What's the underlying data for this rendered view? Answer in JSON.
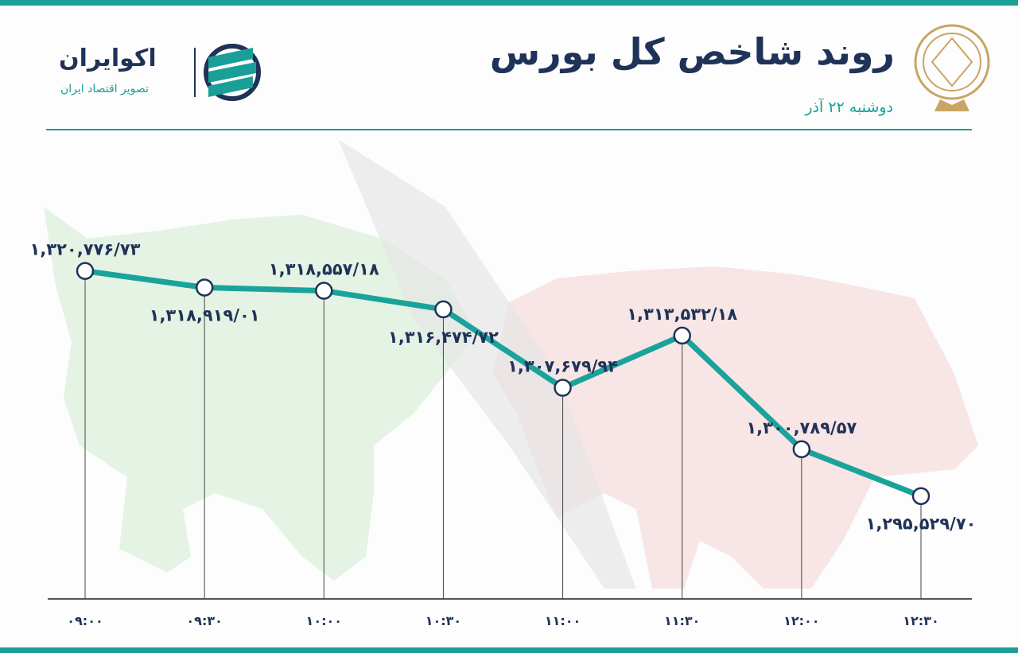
{
  "brand": {
    "name": "اکوایران",
    "tagline": "تصویر اقتصاد ایران"
  },
  "chart_data": {
    "type": "line",
    "title": "روند شاخص کل بورس",
    "subtitle": "دوشنبه ۲۲ آذر",
    "categories": [
      "۰۹:۰۰",
      "۰۹:۳۰",
      "۱۰:۰۰",
      "۱۰:۳۰",
      "۱۱:۰۰",
      "۱۱:۳۰",
      "۱۲:۰۰",
      "۱۲:۳۰"
    ],
    "values": [
      1320776.73,
      1318919.01,
      1318557.18,
      1316474.72,
      1307679.94,
      1313532.18,
      1300789.57,
      1295529.7
    ],
    "value_labels": [
      "۱,۳۲۰,۷۷۶/۷۳",
      "۱,۳۱۸,۹۱۹/۰۱",
      "۱,۳۱۸,۵۵۷/۱۸",
      "۱,۳۱۶,۴۷۴/۷۲",
      "۱,۳۰۷,۶۷۹/۹۴",
      "۱,۳۱۳,۵۳۲/۱۸",
      "۱,۳۰۰,۷۸۹/۵۷",
      "۱,۲۹۵,۵۲۹/۷۰"
    ],
    "color": "#1aa39a",
    "ylim": [
      1284000,
      1336000
    ]
  }
}
